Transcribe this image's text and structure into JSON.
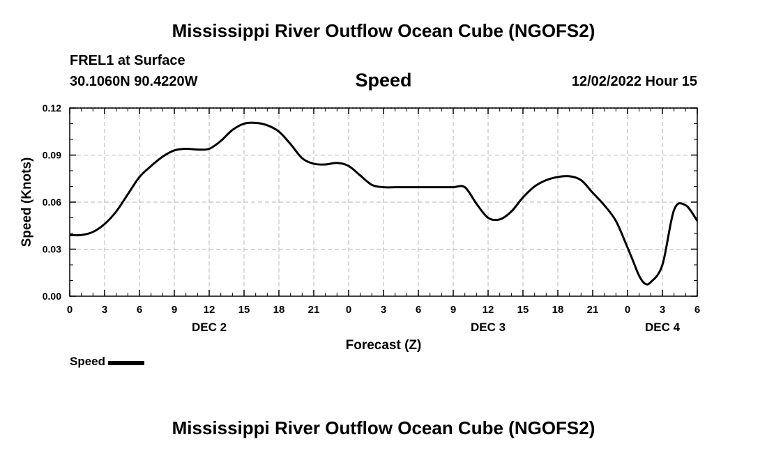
{
  "header": {
    "title": "Mississippi River Outflow Ocean Cube (NGOFS2)",
    "station": "FREL1 at Surface",
    "coords": "30.1060N  90.4220W",
    "timestamp": "12/02/2022 Hour 15",
    "footer_title": "Mississippi River Outflow Ocean Cube (NGOFS2)"
  },
  "chart_data": {
    "type": "line",
    "title": "Speed",
    "xlabel": "Forecast (Z)",
    "ylabel": "Speed (Knots)",
    "xlim": [
      0,
      54
    ],
    "ylim": [
      0,
      0.12
    ],
    "yticks": [
      0,
      0.03,
      0.06,
      0.09,
      0.12
    ],
    "ytick_labels": [
      "0.00",
      "0.03",
      "0.06",
      "0.09",
      "0.12"
    ],
    "xticks": [
      0,
      3,
      6,
      9,
      12,
      15,
      18,
      21,
      24,
      27,
      30,
      33,
      36,
      39,
      42,
      45,
      48,
      51,
      54
    ],
    "xtick_labels": [
      "0",
      "3",
      "6",
      "9",
      "12",
      "15",
      "18",
      "21",
      "0",
      "3",
      "6",
      "9",
      "12",
      "15",
      "18",
      "21",
      "0",
      "3",
      "6"
    ],
    "day_labels": [
      {
        "x": 12,
        "label": "DEC 2"
      },
      {
        "x": 36,
        "label": "DEC 3"
      },
      {
        "x": 51,
        "label": "DEC 4"
      }
    ],
    "grid": true,
    "legend_position": "bottom-left",
    "series": [
      {
        "name": "Speed",
        "color": "#000000",
        "x": [
          0,
          1,
          2,
          3,
          4,
          5,
          6,
          7,
          8,
          9,
          10,
          11,
          12,
          13,
          14,
          15,
          16,
          17,
          18,
          19,
          20,
          21,
          22,
          23,
          24,
          25,
          26,
          27,
          28,
          29,
          30,
          31,
          32,
          33,
          34,
          35,
          36,
          37,
          38,
          39,
          40,
          41,
          42,
          43,
          44,
          45,
          46,
          47,
          48,
          48.5,
          49,
          49.5,
          50,
          51,
          52,
          53,
          54
        ],
        "y": [
          0.039,
          0.039,
          0.041,
          0.046,
          0.054,
          0.065,
          0.076,
          0.083,
          0.089,
          0.093,
          0.094,
          0.0935,
          0.094,
          0.099,
          0.106,
          0.11,
          0.1105,
          0.109,
          0.105,
          0.097,
          0.088,
          0.0845,
          0.084,
          0.085,
          0.083,
          0.077,
          0.071,
          0.0695,
          0.0695,
          0.0695,
          0.0695,
          0.0695,
          0.0695,
          0.0695,
          0.0695,
          0.059,
          0.05,
          0.049,
          0.054,
          0.063,
          0.07,
          0.074,
          0.076,
          0.0765,
          0.074,
          0.066,
          0.058,
          0.048,
          0.031,
          0.022,
          0.013,
          0.008,
          0.009,
          0.02,
          0.055,
          0.058,
          0.048
        ]
      }
    ]
  }
}
